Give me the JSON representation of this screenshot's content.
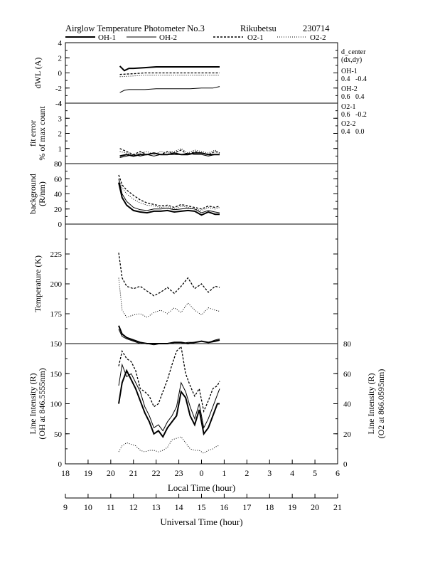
{
  "header": {
    "title": "Airglow Temperature Photometer No.3",
    "station": "Rikubetsu",
    "date": "230714"
  },
  "legend": [
    {
      "name": "OH-1",
      "style": "solid-thick"
    },
    {
      "name": "OH-2",
      "style": "solid-thin"
    },
    {
      "name": "O2-1",
      "style": "dashed"
    },
    {
      "name": "O2-2",
      "style": "dotted"
    }
  ],
  "side_info": {
    "heading": "d_center",
    "subheading": "(dx,dy)",
    "items": [
      {
        "label": "OH-1",
        "values": "0.4   -0.4"
      },
      {
        "label": "OH-2",
        "values": "0.6   0.4"
      },
      {
        "label": "O2-1",
        "values": "0.6   -0.2"
      },
      {
        "label": "O2-2",
        "values": "0.4   0.0"
      }
    ]
  },
  "x_axes": {
    "local_label": "Local Time (hour)",
    "local_ticks": [
      "18",
      "19",
      "20",
      "21",
      "22",
      "23",
      "0",
      "1",
      "2",
      "3",
      "4",
      "5",
      "6"
    ],
    "universal_label": "Universal Time (hour)",
    "universal_ticks": [
      "9",
      "10",
      "11",
      "12",
      "13",
      "14",
      "15",
      "16",
      "17",
      "18",
      "19",
      "20",
      "21"
    ]
  },
  "chart_data": [
    {
      "type": "line",
      "panel": "dwl",
      "ylabel": "dWL (A)",
      "ylim": [
        -4,
        4
      ],
      "yticks": [
        "4",
        "2",
        "0",
        "-2",
        "-4"
      ],
      "series": [
        {
          "name": "OH-1",
          "x": [
            11.4,
            11.6,
            11.8,
            12,
            12.5,
            13,
            13.5,
            14,
            14.5,
            15,
            15.5,
            15.8
          ],
          "y": [
            0.9,
            0.3,
            0.6,
            0.6,
            0.7,
            0.8,
            0.8,
            0.8,
            0.8,
            0.8,
            0.8,
            0.8
          ]
        },
        {
          "name": "OH-2",
          "x": [
            11.4,
            11.6,
            11.8,
            12,
            12.5,
            13,
            13.5,
            14,
            14.5,
            15,
            15.5,
            15.8
          ],
          "y": [
            -2.6,
            -2.3,
            -2.2,
            -2.2,
            -2.2,
            -2.1,
            -2.1,
            -2.1,
            -2.1,
            -2.0,
            -2.0,
            -1.8
          ]
        },
        {
          "name": "O2-1",
          "x": [
            11.4,
            12,
            12.5,
            13,
            13.5,
            14,
            14.5,
            15,
            15.5,
            15.8
          ],
          "y": [
            -0.2,
            -0.1,
            0.0,
            0.0,
            0.0,
            0.0,
            0.0,
            0.0,
            0.0,
            0.0
          ]
        },
        {
          "name": "O2-2",
          "x": [
            11.4,
            12,
            12.5,
            13,
            13.5,
            14,
            14.5,
            15,
            15.5,
            15.8
          ],
          "y": [
            -0.5,
            -0.4,
            -0.3,
            -0.3,
            -0.3,
            -0.3,
            -0.3,
            -0.3,
            -0.3,
            -0.3
          ]
        }
      ]
    },
    {
      "type": "line",
      "panel": "fit_error",
      "ylabel": "fit error",
      "ylabel2": "% of max count",
      "ylim": [
        0,
        4
      ],
      "yticks": [
        "4",
        "3",
        "2",
        "1",
        "0"
      ],
      "series": [
        {
          "name": "OH-1",
          "x": [
            11.4,
            11.7,
            12,
            12.3,
            12.6,
            12.9,
            13.2,
            13.5,
            13.8,
            14.1,
            14.4,
            14.7,
            15,
            15.3,
            15.6,
            15.8
          ],
          "y": [
            0.5,
            0.6,
            0.5,
            0.6,
            0.6,
            0.7,
            0.6,
            0.6,
            0.7,
            0.6,
            0.6,
            0.7,
            0.7,
            0.6,
            0.6,
            0.6
          ]
        },
        {
          "name": "OH-2",
          "x": [
            11.4,
            11.7,
            12,
            12.3,
            12.6,
            12.9,
            13.2,
            13.5,
            13.8,
            14.1,
            14.4,
            14.7,
            15,
            15.3,
            15.6,
            15.8
          ],
          "y": [
            0.4,
            0.5,
            0.6,
            0.5,
            0.6,
            0.5,
            0.6,
            0.6,
            0.6,
            0.6,
            0.7,
            0.6,
            0.6,
            0.5,
            0.6,
            0.6
          ]
        },
        {
          "name": "O2-1",
          "x": [
            11.4,
            11.7,
            12,
            12.3,
            12.6,
            12.9,
            13.2,
            13.5,
            13.8,
            14.1,
            14.4,
            14.7,
            15,
            15.3,
            15.6,
            15.8
          ],
          "y": [
            1.0,
            0.8,
            0.6,
            0.8,
            0.6,
            0.7,
            0.6,
            0.8,
            0.7,
            0.9,
            0.6,
            0.8,
            0.7,
            0.6,
            0.8,
            0.7
          ]
        },
        {
          "name": "O2-2",
          "x": [
            11.4,
            11.7,
            12,
            12.3,
            12.6,
            12.9,
            13.2,
            13.5,
            13.8,
            14.1,
            14.4,
            14.7,
            15,
            15.3,
            15.6,
            15.8
          ],
          "y": [
            0.8,
            0.7,
            0.5,
            0.7,
            0.8,
            0.6,
            0.8,
            0.7,
            0.8,
            1.0,
            0.7,
            0.9,
            0.8,
            0.7,
            0.9,
            0.7
          ]
        }
      ]
    },
    {
      "type": "line",
      "panel": "background",
      "ylabel": "background",
      "ylabel2": "(R/nm)",
      "ylim": [
        0,
        80
      ],
      "yticks": [
        "80",
        "60",
        "40",
        "20",
        "0"
      ],
      "series": [
        {
          "name": "OH-1",
          "x": [
            11.35,
            11.5,
            11.7,
            12,
            12.3,
            12.6,
            12.9,
            13.2,
            13.5,
            13.8,
            14.1,
            14.4,
            14.7,
            15,
            15.3,
            15.6,
            15.8
          ],
          "y": [
            55,
            35,
            25,
            18,
            16,
            15,
            17,
            17,
            18,
            16,
            17,
            18,
            17,
            12,
            16,
            13,
            13
          ]
        },
        {
          "name": "OH-2",
          "x": [
            11.35,
            11.5,
            11.7,
            12,
            12.3,
            12.6,
            12.9,
            13.2,
            13.5,
            13.8,
            14.1,
            14.4,
            14.7,
            15,
            15.3,
            15.6,
            15.8
          ],
          "y": [
            60,
            40,
            30,
            22,
            19,
            18,
            20,
            20,
            21,
            19,
            20,
            21,
            20,
            15,
            18,
            16,
            15
          ]
        },
        {
          "name": "O2-1",
          "x": [
            11.35,
            11.5,
            11.7,
            12,
            12.3,
            12.6,
            12.9,
            13.2,
            13.5,
            13.8,
            14.1,
            14.4,
            14.7,
            15,
            15.3,
            15.6,
            15.8
          ],
          "y": [
            65,
            52,
            45,
            38,
            32,
            28,
            26,
            24,
            25,
            22,
            26,
            24,
            22,
            20,
            24,
            22,
            24
          ]
        },
        {
          "name": "O2-2",
          "x": [
            11.35,
            11.5,
            11.7,
            12,
            12.3,
            12.6,
            12.9,
            13.2,
            13.5,
            13.8,
            14.1,
            14.4,
            14.7,
            15,
            15.3,
            15.6,
            15.8
          ],
          "y": [
            60,
            48,
            40,
            33,
            28,
            25,
            24,
            22,
            23,
            20,
            24,
            22,
            20,
            18,
            22,
            20,
            22
          ]
        }
      ]
    },
    {
      "type": "line",
      "panel": "temperature",
      "ylabel": "Temperature (K)",
      "ylim": [
        150,
        250
      ],
      "yticks": [
        "225",
        "200",
        "175",
        "150"
      ],
      "series": [
        {
          "name": "OH-1",
          "x": [
            11.35,
            11.5,
            11.7,
            12,
            12.3,
            12.6,
            12.9,
            13.2,
            13.5,
            13.8,
            14.1,
            14.4,
            14.7,
            15,
            15.3,
            15.6,
            15.8
          ],
          "y": [
            165,
            158,
            155,
            153,
            151,
            150,
            150,
            150,
            150,
            151,
            151,
            150,
            151,
            152,
            151,
            152,
            153
          ]
        },
        {
          "name": "OH-2",
          "x": [
            11.35,
            11.5,
            11.7,
            12,
            12.3,
            12.6,
            12.9,
            13.2,
            13.5,
            13.8,
            14.1,
            14.4,
            14.7,
            15,
            15.3,
            15.6,
            15.8
          ],
          "y": [
            162,
            156,
            154,
            152,
            150,
            150,
            149,
            150,
            150,
            150,
            150,
            151,
            151,
            152,
            151,
            153,
            154
          ]
        },
        {
          "name": "O2-1",
          "x": [
            11.35,
            11.5,
            11.7,
            12,
            12.3,
            12.6,
            12.9,
            13.2,
            13.5,
            13.8,
            14.1,
            14.4,
            14.7,
            15,
            15.3,
            15.6,
            15.8
          ],
          "y": [
            226,
            205,
            198,
            196,
            198,
            194,
            190,
            193,
            197,
            192,
            198,
            205,
            196,
            200,
            193,
            198,
            197
          ]
        },
        {
          "name": "O2-2",
          "x": [
            11.35,
            11.5,
            11.7,
            12,
            12.3,
            12.6,
            12.9,
            13.2,
            13.5,
            13.8,
            14.1,
            14.4,
            14.7,
            15,
            15.3,
            15.6,
            15.8
          ],
          "y": [
            205,
            178,
            172,
            174,
            175,
            172,
            176,
            178,
            175,
            180,
            176,
            184,
            178,
            174,
            180,
            178,
            177
          ]
        }
      ]
    },
    {
      "type": "line",
      "panel": "line_intensity",
      "ylabel": "Line Intensity (R)",
      "ylabel2": "(OH at 846.5555nm)",
      "ylim": [
        0,
        200
      ],
      "yticks": [
        "150",
        "100",
        "50",
        "0"
      ],
      "y2label": "Line Intensity (R)",
      "y2label2": "(O2 at 866.0595nm)",
      "y2lim": [
        0,
        80
      ],
      "y2ticks": [
        "80",
        "60",
        "40",
        "20",
        "0"
      ],
      "series": [
        {
          "name": "OH-1",
          "x": [
            11.35,
            11.5,
            11.7,
            11.9,
            12.1,
            12.3,
            12.5,
            12.7,
            12.9,
            13.1,
            13.3,
            13.5,
            13.7,
            13.9,
            14.1,
            14.3,
            14.5,
            14.7,
            14.9,
            15.1,
            15.3,
            15.5,
            15.7,
            15.8
          ],
          "y": [
            100,
            135,
            155,
            140,
            125,
            105,
            85,
            70,
            50,
            55,
            45,
            60,
            70,
            80,
            120,
            110,
            80,
            65,
            90,
            50,
            60,
            80,
            100,
            100
          ]
        },
        {
          "name": "OH-2",
          "x": [
            11.35,
            11.5,
            11.7,
            11.9,
            12.1,
            12.3,
            12.5,
            12.7,
            12.9,
            13.1,
            13.3,
            13.5,
            13.7,
            13.9,
            14.1,
            14.3,
            14.5,
            14.7,
            14.9,
            15.1,
            15.3,
            15.5,
            15.7,
            15.8
          ],
          "y": [
            130,
            165,
            145,
            150,
            135,
            120,
            95,
            80,
            60,
            65,
            55,
            70,
            80,
            95,
            135,
            120,
            95,
            75,
            100,
            60,
            75,
            95,
            115,
            125
          ]
        },
        {
          "name": "O2-1",
          "x": [
            11.35,
            11.5,
            11.7,
            11.9,
            12.1,
            12.3,
            12.5,
            12.7,
            12.9,
            13.1,
            13.3,
            13.5,
            13.7,
            13.9,
            14.1,
            14.3,
            14.5,
            14.7,
            14.9,
            15.1,
            15.3,
            15.5,
            15.7,
            15.8
          ],
          "y": [
            65,
            75,
            70,
            68,
            62,
            50,
            48,
            45,
            38,
            40,
            48,
            56,
            66,
            75,
            78,
            60,
            52,
            45,
            50,
            35,
            42,
            50,
            52,
            55
          ]
        },
        {
          "name": "O2-2",
          "x": [
            11.35,
            11.5,
            11.7,
            11.9,
            12.1,
            12.3,
            12.5,
            12.7,
            12.9,
            13.1,
            13.3,
            13.5,
            13.7,
            13.9,
            14.1,
            14.3,
            14.5,
            14.7,
            14.9,
            15.1,
            15.3,
            15.5,
            15.7,
            15.8
          ],
          "y": [
            8,
            12,
            14,
            13,
            12,
            9,
            8,
            9,
            9,
            8,
            9,
            11,
            16,
            17,
            18,
            14,
            10,
            9,
            9,
            7,
            9,
            10,
            12,
            12
          ]
        }
      ]
    }
  ]
}
